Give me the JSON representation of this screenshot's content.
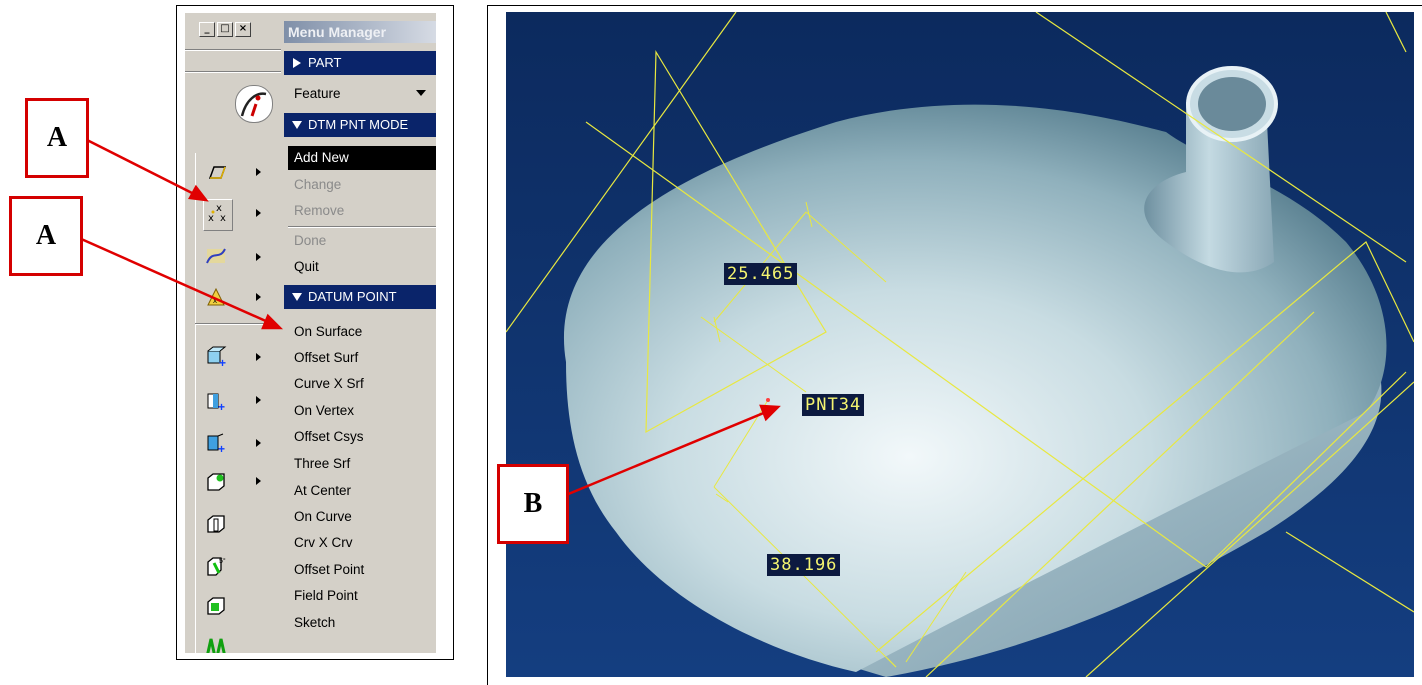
{
  "menu_manager": {
    "title": "Menu Manager",
    "part_header": "PART",
    "feature_label": "Feature",
    "dtm_header": "DTM PNT MODE",
    "mode_items": [
      {
        "label": "Add New",
        "selected": true,
        "enabled": true
      },
      {
        "label": "Change",
        "enabled": false
      },
      {
        "label": "Remove",
        "enabled": false
      },
      {
        "label": "Done",
        "enabled": false
      },
      {
        "label": "Quit",
        "enabled": true
      }
    ],
    "datum_header": "DATUM POINT",
    "datum_items": [
      "On Surface",
      "Offset Surf",
      "Curve X Srf",
      "On Vertex",
      "Offset Csys",
      "Three Srf",
      "At Center",
      "On Curve",
      "Crv X Crv",
      "Offset Point",
      "Field Point",
      "Sketch"
    ]
  },
  "window_buttons": {
    "minimize": "_",
    "maximize": "□",
    "close": "×"
  },
  "toolbar_icons": [
    "datum-plane-icon",
    "datum-point-icon",
    "datum-curve-icon",
    "datum-analysis-icon",
    "extrude-icon",
    "revolve-icon",
    "sweep-icon",
    "shell-icon",
    "rib-icon",
    "draft-icon",
    "round-icon",
    "chamfer-icon"
  ],
  "callouts": {
    "a1": "A",
    "a2": "A",
    "b": "B"
  },
  "viewport": {
    "dimension_1": "25.465",
    "dimension_2": "38.196",
    "point_label": "PNT34"
  },
  "colors": {
    "callout_red": "#d40000",
    "menu_header_blue": "#0a246a",
    "viewport_bg_top": "#0c2a5e",
    "viewport_bg_bottom": "#123a7a",
    "datum_yellow": "#e8e840"
  }
}
